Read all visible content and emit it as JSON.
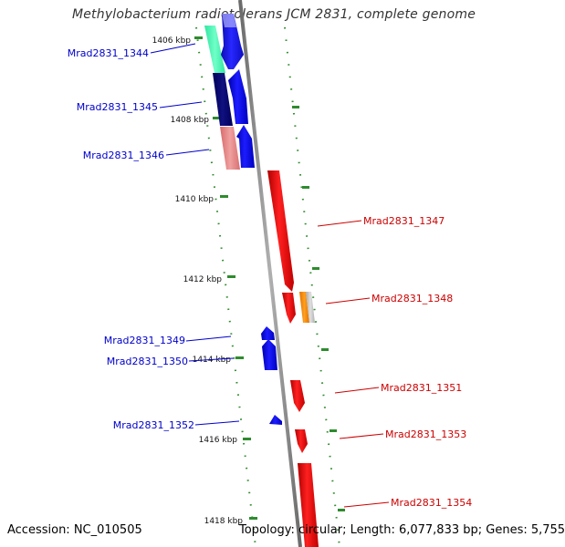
{
  "title": "Methylobacterium radiotolerans JCM 2831, complete genome",
  "accession": "Accession: NC_010505",
  "topology": "Topology: circular; Length: 6,077,833 bp; Genes: 5,755",
  "colors": {
    "minus_label": "#0000cc",
    "plus_label": "#cc0000",
    "tick_dashes": "#2e8b2e",
    "axis_line": "#888888"
  },
  "ticks": [
    "1406 kbp",
    "1408 kbp",
    "1410 kbp",
    "1412 kbp",
    "1414 kbp",
    "1416 kbp",
    "1418 kbp"
  ],
  "genes": [
    {
      "id": "Mrad2831_1344",
      "strand": "minus"
    },
    {
      "id": "Mrad2831_1345",
      "strand": "minus"
    },
    {
      "id": "Mrad2831_1346",
      "strand": "minus"
    },
    {
      "id": "Mrad2831_1347",
      "strand": "plus"
    },
    {
      "id": "Mrad2831_1348",
      "strand": "plus"
    },
    {
      "id": "Mrad2831_1349",
      "strand": "minus"
    },
    {
      "id": "Mrad2831_1350",
      "strand": "minus"
    },
    {
      "id": "Mrad2831_1351",
      "strand": "plus"
    },
    {
      "id": "Mrad2831_1352",
      "strand": "minus"
    },
    {
      "id": "Mrad2831_1353",
      "strand": "plus"
    },
    {
      "id": "Mrad2831_1354",
      "strand": "plus"
    }
  ]
}
